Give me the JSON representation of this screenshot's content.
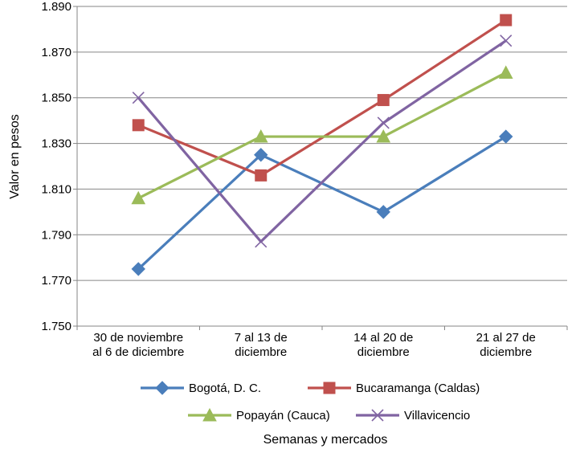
{
  "chart_data": {
    "type": "line",
    "title": "",
    "xlabel": "Semanas y mercados",
    "ylabel": "Valor en pesos",
    "categories": [
      [
        "30 de noviembre",
        "al 6 de diciembre"
      ],
      [
        "7 al 13 de",
        "diciembre"
      ],
      [
        "14 al 20 de",
        "diciembre"
      ],
      [
        "21 al 27 de",
        "diciembre"
      ]
    ],
    "ylim": [
      1750,
      1890
    ],
    "yticks": [
      1750,
      1770,
      1790,
      1810,
      1830,
      1850,
      1870,
      1890
    ],
    "ytick_labels": [
      "1.750",
      "1.770",
      "1.790",
      "1.810",
      "1.830",
      "1.850",
      "1.870",
      "1.890"
    ],
    "grid": true,
    "legend_position": "bottom",
    "series": [
      {
        "name": "Bogotá, D. C.",
        "values": [
          1775,
          1825,
          1800,
          1833
        ],
        "color": "#4a7ebb",
        "marker": "diamond"
      },
      {
        "name": "Bucaramanga (Caldas)",
        "values": [
          1838,
          1816,
          1849,
          1884
        ],
        "color": "#c0504d",
        "marker": "square"
      },
      {
        "name": "Popayán (Cauca)",
        "values": [
          1806,
          1833,
          1833,
          1861
        ],
        "color": "#9bbb59",
        "marker": "triangle"
      },
      {
        "name": "Villavicencio",
        "values": [
          1850,
          1787,
          1839,
          1875
        ],
        "color": "#8064a2",
        "marker": "x"
      }
    ]
  }
}
